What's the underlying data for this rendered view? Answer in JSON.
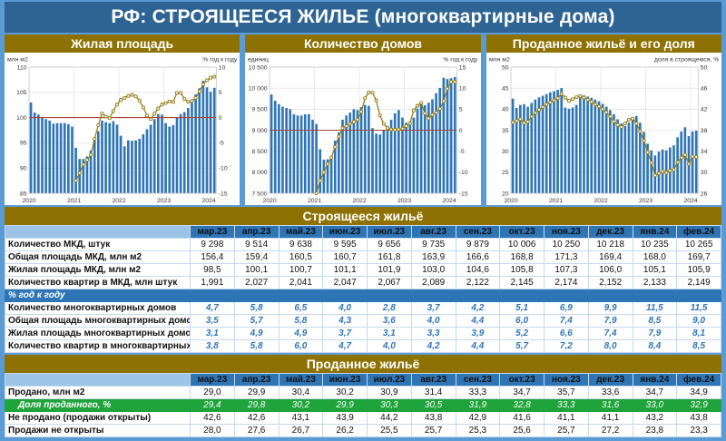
{
  "page": {
    "title": "РФ: СТРОЯЩЕЕСЯ ЖИЛЬЕ (многоквартирные дома)"
  },
  "colors": {
    "page_background": "#5b9bd5",
    "title_bar": "#2d6493",
    "section_header": "#8d7103",
    "table_header": "#2e75b6",
    "green_row": "#1ea43a",
    "bar": "#2e75b6",
    "yoy_line": "#8f760b",
    "marker_fill": "#ffffff",
    "zero_line": "#a94438",
    "yoy_text": "#2e75b6"
  },
  "chart_data": [
    {
      "type": "bar",
      "title": "Жилая площадь",
      "x_years": [
        "2020",
        "2021",
        "2022",
        "2023",
        "2024"
      ],
      "left_axis": {
        "caption": "млн м2",
        "min": 85,
        "max": 110,
        "ticks": [
          85,
          90,
          95,
          100,
          105,
          110
        ],
        "tick_labels": [
          "85",
          "90",
          "95",
          "100",
          "105",
          "110"
        ]
      },
      "right_axis": {
        "caption": "% год к году",
        "min": -15,
        "max": 10,
        "ticks": [
          -15,
          -10,
          -5,
          0,
          5,
          10
        ],
        "tick_labels": [
          "-15",
          "-10",
          "-5",
          "0",
          "5",
          "10"
        ]
      },
      "bars": {
        "name": "Жилая площадь МКД, млн м2",
        "values": [
          103.0,
          101.0,
          100.6,
          100.0,
          99.7,
          99.4,
          98.8,
          98.9,
          98.9,
          98.9,
          98.7,
          98.2,
          94.0,
          91.8,
          91.8,
          92.3,
          93.5,
          95.5,
          97.3,
          99.4,
          99.1,
          98.9,
          99.3,
          98.6,
          96.4,
          94.3,
          95.5,
          95.4,
          95.5,
          95.8,
          96.7,
          97.7,
          98.6,
          99.7,
          100.7,
          100.6,
          98.9,
          98.2,
          98.5,
          100.1,
          100.7,
          101.1,
          101.9,
          103.0,
          104.6,
          105.8,
          107.3,
          106.0,
          105.1,
          105.9
        ]
      },
      "line": {
        "name": "% год к году",
        "start_index": 12,
        "values": [
          -12.5,
          -11.0,
          -9.3,
          -8.4,
          -7.4,
          -4.2,
          -1.5,
          0.8,
          0.2,
          -0.1,
          1.3,
          2.6,
          3.5,
          3.9,
          4.3,
          4.5,
          4.2,
          3.4,
          2.0,
          0.4,
          -0.3,
          0.8,
          1.8,
          2.6,
          2.9,
          3.2,
          3.1,
          4.9,
          4.9,
          3.7,
          3.1,
          3.3,
          3.9,
          5.2,
          6.6,
          7.4,
          7.9,
          8.1
        ]
      },
      "zero_line_right": 0
    },
    {
      "type": "bar",
      "title": "Количество домов",
      "x_years": [
        "2020",
        "2021",
        "2022",
        "2023",
        "2024"
      ],
      "left_axis": {
        "caption": "единиц",
        "min": 7500,
        "max": 10500,
        "ticks": [
          7500,
          8000,
          8500,
          9000,
          9500,
          10000,
          10500
        ],
        "tick_labels": [
          "7 500",
          "8 000",
          "8 500",
          "9 000",
          "9 500",
          "10 000",
          "10 500"
        ]
      },
      "right_axis": {
        "caption": "% год к году",
        "min": -15,
        "max": 15,
        "ticks": [
          -15,
          -10,
          -5,
          0,
          5,
          10,
          15
        ],
        "tick_labels": [
          "-15",
          "-10",
          "-5",
          "0",
          "5",
          "10",
          "15"
        ]
      },
      "bars": {
        "name": "Количество МКД, штук",
        "values": [
          9850,
          9700,
          9620,
          9560,
          9530,
          9500,
          9380,
          9350,
          9350,
          9380,
          9380,
          9250,
          9150,
          8550,
          8300,
          8310,
          8330,
          8750,
          8950,
          9250,
          9350,
          9420,
          9500,
          9480,
          9550,
          9600,
          9580,
          9050,
          8920,
          8900,
          9000,
          9100,
          9250,
          9400,
          9480,
          9300,
          9179,
          9206,
          9298,
          9514,
          9638,
          9595,
          9656,
          9735,
          9879,
          10006,
          10250,
          10218,
          10235,
          10265
        ]
      },
      "line": {
        "name": "% год к году",
        "start_index": 12,
        "values": [
          -15.0,
          -12.0,
          -10.0,
          -8.0,
          -6.5,
          -4.0,
          -1.5,
          0.5,
          1.0,
          1.5,
          2.0,
          2.5,
          4.4,
          7.6,
          9.0,
          8.9,
          7.1,
          3.5,
          1.5,
          0.5,
          0.2,
          0.1,
          0.2,
          0.4,
          1.0,
          1.6,
          4.7,
          5.8,
          6.5,
          4.0,
          2.8,
          3.7,
          4.2,
          5.1,
          6.9,
          9.9,
          11.5,
          11.5
        ]
      },
      "zero_line_right": 0
    },
    {
      "type": "bar",
      "title": "Проданное жильё и его доля",
      "x_years": [
        "2020",
        "2021",
        "2022",
        "2023",
        "2024"
      ],
      "left_axis": {
        "caption": "млн м2",
        "min": 20,
        "max": 50,
        "ticks": [
          20,
          25,
          30,
          35,
          40,
          45,
          50
        ],
        "tick_labels": [
          "20",
          "25",
          "30",
          "35",
          "40",
          "45",
          "50"
        ]
      },
      "right_axis": {
        "caption": "доля в строящемся, %",
        "min": 26,
        "max": 50,
        "ticks": [
          26,
          30,
          34,
          38,
          42,
          46,
          50
        ],
        "tick_labels": [
          "26",
          "30",
          "34",
          "38",
          "42",
          "46",
          "50"
        ]
      },
      "bars": {
        "name": "Продано, млн м2",
        "values": [
          42.5,
          40.3,
          41.0,
          41.2,
          40.6,
          41.5,
          42.3,
          42.8,
          43.2,
          43.6,
          44.0,
          44.3,
          44.6,
          45.0,
          40.4,
          40.1,
          40.4,
          41.0,
          43.5,
          43.3,
          43.0,
          42.7,
          42.3,
          41.9,
          41.3,
          40.6,
          39.8,
          38.8,
          37.6,
          36.6,
          36.0,
          36.8,
          38.0,
          38.4,
          36.8,
          34.6,
          31.8,
          30.2,
          29.0,
          29.9,
          30.4,
          30.2,
          30.9,
          31.4,
          33.3,
          34.7,
          35.7,
          33.6,
          34.7,
          34.9
        ]
      },
      "line": {
        "name": "Доля проданного, %",
        "start_index": 0,
        "values": [
          39.5,
          39.8,
          40.1,
          39.4,
          39.6,
          40.6,
          41.3,
          41.9,
          42.4,
          42.9,
          43.3,
          43.7,
          44.1,
          44.9,
          44.2,
          43.6,
          43.9,
          44.3,
          44.5,
          44.2,
          43.8,
          43.4,
          42.9,
          42.5,
          42.0,
          41.4,
          40.6,
          39.7,
          39.0,
          38.6,
          39.3,
          40.0,
          40.2,
          39.3,
          37.8,
          36.0,
          33.8,
          31.8,
          29.4,
          29.8,
          30.2,
          29.9,
          30.3,
          30.5,
          31.9,
          32.8,
          33.3,
          31.6,
          33.0,
          32.9
        ]
      },
      "zero_line_right": null
    }
  ],
  "construction_table": {
    "title": "Строящееся жильё",
    "months": [
      "мар.23",
      "апр.23",
      "май.23",
      "июн.23",
      "июл.23",
      "авг.23",
      "сен.23",
      "окт.23",
      "ноя.23",
      "дек.23",
      "янв.24",
      "фев.24"
    ],
    "rows": [
      {
        "label": "Количество МКД, штук",
        "values": [
          "9 298",
          "9 514",
          "9 638",
          "9 595",
          "9 656",
          "9 735",
          "9 879",
          "10 006",
          "10 250",
          "10 218",
          "10 235",
          "10 265"
        ]
      },
      {
        "label": "Общая площадь МКД, млн м2",
        "values": [
          "156,4",
          "159,4",
          "160,5",
          "160,7",
          "161,8",
          "163,9",
          "166,6",
          "168,8",
          "171,3",
          "169,4",
          "168,0",
          "169,7"
        ]
      },
      {
        "label": "Жилая площадь МКД, млн м2",
        "values": [
          "98,5",
          "100,1",
          "100,7",
          "101,1",
          "101,9",
          "103,0",
          "104,6",
          "105,8",
          "107,3",
          "106,0",
          "105,1",
          "105,9"
        ]
      },
      {
        "label": "Количество квартир в МКД, млн штук",
        "values": [
          "1,991",
          "2,027",
          "2,041",
          "2,047",
          "2,067",
          "2,089",
          "2,122",
          "2,145",
          "2,174",
          "2,152",
          "2,133",
          "2,149"
        ]
      }
    ],
    "yoy_header": "% год к году",
    "yoy_rows": [
      {
        "label": "Количество многоквартирных домов",
        "values": [
          "4,7",
          "5,8",
          "6,5",
          "4,0",
          "2,8",
          "3,7",
          "4,2",
          "5,1",
          "6,9",
          "9,9",
          "11,5",
          "11,5"
        ]
      },
      {
        "label": "Общая площадь многоквартирных домов",
        "values": [
          "3,5",
          "5,7",
          "5,8",
          "4,3",
          "3,6",
          "4,0",
          "4,4",
          "6,0",
          "7,4",
          "7,9",
          "8,5",
          "9,0"
        ]
      },
      {
        "label": "Жилая площадь многоквартирных домов",
        "values": [
          "3,1",
          "4,9",
          "4,9",
          "3,7",
          "3,1",
          "3,3",
          "3,9",
          "5,2",
          "6,6",
          "7,4",
          "7,9",
          "8,1"
        ]
      },
      {
        "label": "Количество квартир в многоквартирных домах",
        "values": [
          "3,8",
          "5,8",
          "6,0",
          "4,7",
          "4,0",
          "4,2",
          "4,4",
          "5,7",
          "7,2",
          "8,0",
          "8,4",
          "8,5"
        ]
      }
    ]
  },
  "sold_table": {
    "title": "Проданное жильё",
    "months": [
      "мар.23",
      "апр.23",
      "май.23",
      "июн.23",
      "июл.23",
      "авг.23",
      "сен.23",
      "окт.23",
      "ноя.23",
      "дек.23",
      "янв.24",
      "фев.24"
    ],
    "rows": [
      {
        "label": "Продано, млн м2",
        "highlight": false,
        "values": [
          "29,0",
          "29,9",
          "30,4",
          "30,2",
          "30,9",
          "31,4",
          "33,3",
          "34,7",
          "35,7",
          "33,6",
          "34,7",
          "34,9"
        ]
      },
      {
        "label": "Доля проданного, %",
        "highlight": true,
        "values": [
          "29,4",
          "29,8",
          "30,2",
          "29,9",
          "30,3",
          "30,5",
          "31,9",
          "32,8",
          "33,3",
          "31,6",
          "33,0",
          "32,9"
        ]
      },
      {
        "label": "Не продано (продажи открыты)",
        "highlight": false,
        "values": [
          "42,6",
          "42,6",
          "43,1",
          "43,9",
          "44,2",
          "43,8",
          "42,9",
          "41,6",
          "41,1",
          "41,1",
          "43,2",
          "43,8"
        ]
      },
      {
        "label": "Продажи не открыты",
        "highlight": false,
        "values": [
          "28,0",
          "27,6",
          "26,7",
          "26,2",
          "25,5",
          "25,7",
          "25,3",
          "25,6",
          "25,7",
          "27,2",
          "23,8",
          "23,3"
        ]
      }
    ]
  }
}
